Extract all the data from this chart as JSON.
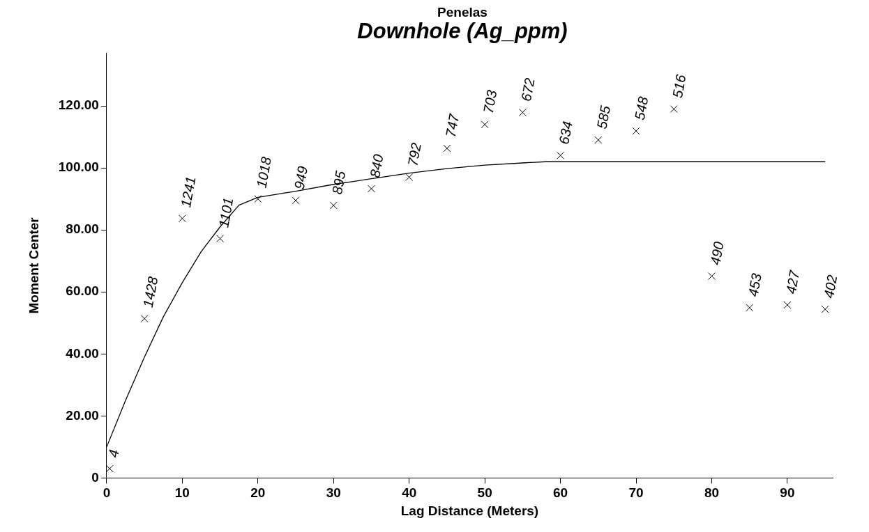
{
  "chart_data": {
    "type": "scatter",
    "title": "Downhole (Ag_ppm)",
    "subtitle": "Penelas",
    "xlabel": "Lag Distance (Meters)",
    "ylabel": "Moment Center",
    "xlim": [
      0,
      96
    ],
    "xticks": [
      0,
      10,
      20,
      30,
      40,
      50,
      60,
      70,
      80,
      90
    ],
    "ylim": [
      0,
      137
    ],
    "yticks": [
      0,
      {
        "value": 20,
        "label": "20.00"
      },
      {
        "value": 40,
        "label": "40.00"
      },
      {
        "value": 60,
        "label": "60.00"
      },
      {
        "value": 80,
        "label": "80.00"
      },
      {
        "value": 100,
        "label": "100.00"
      },
      {
        "value": 120,
        "label": "120.00"
      }
    ],
    "grid": false,
    "legend": false,
    "annotations": [
      {
        "text": "4",
        "x": 0.4,
        "y": 3
      },
      {
        "text": "1428",
        "x": 5,
        "y": 51.4
      },
      {
        "text": "1241",
        "x": 10,
        "y": 83.7
      },
      {
        "text": "1101",
        "x": 15,
        "y": 77.2
      },
      {
        "text": "1018",
        "x": 20,
        "y": 90
      },
      {
        "text": "949",
        "x": 25,
        "y": 89.5
      },
      {
        "text": "895",
        "x": 30,
        "y": 87.9
      },
      {
        "text": "840",
        "x": 35,
        "y": 93.3
      },
      {
        "text": "792",
        "x": 40,
        "y": 97
      },
      {
        "text": "747",
        "x": 45,
        "y": 106.3
      },
      {
        "text": "703",
        "x": 50,
        "y": 114
      },
      {
        "text": "672",
        "x": 55,
        "y": 117.9
      },
      {
        "text": "634",
        "x": 60,
        "y": 104
      },
      {
        "text": "585",
        "x": 65,
        "y": 109
      },
      {
        "text": "548",
        "x": 70,
        "y": 111.9
      },
      {
        "text": "516",
        "x": 75,
        "y": 119
      },
      {
        "text": "490",
        "x": 80,
        "y": 65.1
      },
      {
        "text": "453",
        "x": 85,
        "y": 54.9
      },
      {
        "text": "427",
        "x": 90,
        "y": 55.8
      },
      {
        "text": "402",
        "x": 95,
        "y": 54.4
      }
    ],
    "series": [
      {
        "type": "scatter",
        "marker": "cross",
        "color": "#000000",
        "x": [
          0.4,
          5,
          10,
          15,
          20,
          25,
          30,
          35,
          40,
          45,
          50,
          55,
          60,
          65,
          70,
          75,
          80,
          85,
          90,
          95
        ],
        "values": [
          3,
          51.4,
          83.7,
          77.2,
          90,
          89.5,
          87.9,
          93.3,
          97,
          106.3,
          114,
          117.9,
          104,
          109,
          111.9,
          119,
          65.1,
          54.9,
          55.8,
          54.4
        ]
      },
      {
        "type": "line",
        "marker": "none",
        "line_style": "solid",
        "color": "#000000",
        "x": [
          0,
          2.5,
          5,
          7.5,
          10,
          12.5,
          15,
          17.5,
          20,
          25,
          30,
          35,
          40,
          45,
          50,
          55,
          58,
          95
        ],
        "values": [
          10,
          25,
          39,
          52,
          63,
          73,
          81,
          88,
          90.5,
          92.5,
          94.7,
          96.5,
          98.3,
          99.8,
          100.9,
          101.6,
          102,
          102
        ]
      }
    ]
  }
}
